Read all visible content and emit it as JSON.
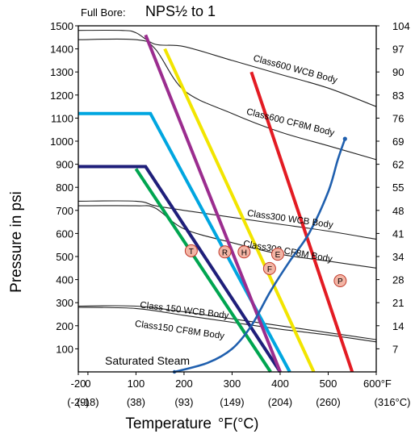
{
  "chart_data": {
    "type": "line",
    "title_prefix": "Full Bore:",
    "title_main": "NPS½ to 1",
    "ylabel": "Pressure in psi",
    "xlabel": "Temperature",
    "xlabel_units": "°F(°C)",
    "xlim": [
      -20,
      600
    ],
    "ylim": [
      0,
      1500
    ],
    "x_ticks": [
      {
        "value": -20,
        "label": "-20",
        "sub": "(-29)"
      },
      {
        "value": 0,
        "label": "0",
        "sub": "(-18)"
      },
      {
        "value": 100,
        "label": "100",
        "sub": "(38)"
      },
      {
        "value": 200,
        "label": "200",
        "sub": "(93)"
      },
      {
        "value": 300,
        "label": "300",
        "sub": "(149)"
      },
      {
        "value": 400,
        "label": "400",
        "sub": "(204)"
      },
      {
        "value": 500,
        "label": "500",
        "sub": "(260)"
      },
      {
        "value": 600,
        "label": "600°F",
        "sub": "(316°C)"
      }
    ],
    "y_ticks_left": [
      100,
      200,
      300,
      400,
      500,
      600,
      700,
      800,
      900,
      1000,
      1100,
      1200,
      1300,
      1400,
      1500
    ],
    "y_ticks_right": [
      {
        "value": 100,
        "label": "7"
      },
      {
        "value": 200,
        "label": "14"
      },
      {
        "value": 300,
        "label": "21"
      },
      {
        "value": 400,
        "label": "28"
      },
      {
        "value": 500,
        "label": "34"
      },
      {
        "value": 600,
        "label": "41"
      },
      {
        "value": 700,
        "label": "48"
      },
      {
        "value": 800,
        "label": "55"
      },
      {
        "value": 900,
        "label": "62"
      },
      {
        "value": 1000,
        "label": "69"
      },
      {
        "value": 1100,
        "label": "76"
      },
      {
        "value": 1200,
        "label": "83"
      },
      {
        "value": 1300,
        "label": "90"
      },
      {
        "value": 1400,
        "label": "97"
      },
      {
        "value": 1500,
        "label": "104"
      }
    ],
    "body_curves": [
      {
        "name": "Class600 WCB Body",
        "points": [
          [
            -20,
            1480
          ],
          [
            70,
            1480
          ],
          [
            100,
            1470
          ],
          [
            140,
            1420
          ],
          [
            200,
            1410
          ],
          [
            300,
            1350
          ],
          [
            400,
            1290
          ],
          [
            500,
            1230
          ],
          [
            600,
            1150
          ]
        ]
      },
      {
        "name": "Class600 CF8M Body",
        "points": [
          [
            -20,
            1440
          ],
          [
            100,
            1440
          ],
          [
            140,
            1400
          ],
          [
            200,
            1220
          ],
          [
            300,
            1120
          ],
          [
            400,
            1040
          ],
          [
            500,
            980
          ],
          [
            600,
            920
          ]
        ]
      },
      {
        "name": "Class300 WCB Body",
        "points": [
          [
            -20,
            740
          ],
          [
            100,
            740
          ],
          [
            140,
            720
          ],
          [
            200,
            700
          ],
          [
            300,
            670
          ],
          [
            400,
            640
          ],
          [
            500,
            610
          ],
          [
            600,
            575
          ]
        ]
      },
      {
        "name": "Class300 CF8M Body",
        "points": [
          [
            -20,
            720
          ],
          [
            100,
            720
          ],
          [
            140,
            710
          ],
          [
            200,
            620
          ],
          [
            300,
            560
          ],
          [
            400,
            510
          ],
          [
            500,
            480
          ],
          [
            600,
            450
          ]
        ]
      },
      {
        "name": "Class 150 WCB Body",
        "points": [
          [
            -20,
            285
          ],
          [
            100,
            285
          ],
          [
            200,
            260
          ],
          [
            300,
            230
          ],
          [
            400,
            200
          ],
          [
            500,
            170
          ],
          [
            600,
            140
          ]
        ]
      },
      {
        "name": "Class150 CF8M Body",
        "points": [
          [
            -20,
            280
          ],
          [
            100,
            275
          ],
          [
            200,
            245
          ],
          [
            300,
            215
          ],
          [
            400,
            185
          ],
          [
            500,
            160
          ],
          [
            600,
            130
          ]
        ]
      }
    ],
    "seat_lines": [
      {
        "color": "#1f1f7a",
        "points": [
          [
            -20,
            890
          ],
          [
            120,
            890
          ],
          [
            400,
            0
          ]
        ]
      },
      {
        "color": "#00a6e0",
        "points": [
          [
            -20,
            1120
          ],
          [
            130,
            1120
          ],
          [
            420,
            0
          ]
        ]
      },
      {
        "color": "#00a550",
        "points": [
          [
            100,
            880
          ],
          [
            380,
            0
          ]
        ]
      },
      {
        "color": "#9b2d8f",
        "points": [
          [
            120,
            1460
          ],
          [
            400,
            0
          ]
        ]
      },
      {
        "color": "#f2e500",
        "points": [
          [
            160,
            1400
          ],
          [
            470,
            0
          ]
        ]
      },
      {
        "color": "#e31b23",
        "points": [
          [
            340,
            1300
          ],
          [
            550,
            0
          ]
        ]
      }
    ],
    "steam_curve": {
      "name": "Saturated Steam",
      "points": [
        [
          180,
          0
        ],
        [
          250,
          40
        ],
        [
          300,
          100
        ],
        [
          340,
          200
        ],
        [
          380,
          350
        ],
        [
          420,
          480
        ],
        [
          460,
          600
        ],
        [
          500,
          780
        ],
        [
          520,
          920
        ],
        [
          535,
          1010
        ]
      ]
    },
    "markers": [
      {
        "label": "T",
        "x": 215,
        "y": 525
      },
      {
        "label": "R",
        "x": 285,
        "y": 520
      },
      {
        "label": "H",
        "x": 325,
        "y": 520
      },
      {
        "label": "E",
        "x": 395,
        "y": 510
      },
      {
        "label": "F",
        "x": 378,
        "y": 448
      },
      {
        "label": "P",
        "x": 525,
        "y": 395
      }
    ],
    "curve_labels": [
      {
        "text": "Class600 WCB Body",
        "x": 430,
        "y": 1300
      },
      {
        "text": "Class600 CF8M Body",
        "x": 420,
        "y": 1070
      },
      {
        "text": "Class300 WCB Body",
        "x": 420,
        "y": 650
      },
      {
        "text": "Class300 CF8M Body",
        "x": 415,
        "y": 510
      },
      {
        "text": "Class 150 WCB Body",
        "x": 200,
        "y": 255
      },
      {
        "text": "Class150 CF8M Body",
        "x": 190,
        "y": 170
      }
    ]
  },
  "colors": {
    "axis": "#000000",
    "body_curve": "#222222",
    "marker_fill": "#f3b5a5",
    "marker_stroke": "#c0392b",
    "steam": "#1f5fae",
    "steam_label": "#9b2d8f"
  }
}
